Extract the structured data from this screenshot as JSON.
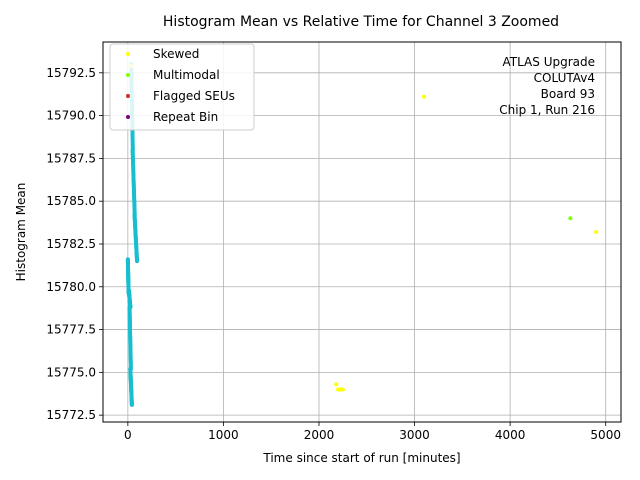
{
  "chart_data": {
    "type": "scatter",
    "title": "Histogram Mean vs Relative Time for Channel 3 Zoomed",
    "xlabel": "Time since start of run [minutes]",
    "ylabel": "Histogram Mean",
    "xlim": [
      -260,
      5160
    ],
    "ylim": [
      15772.1,
      15794.3
    ],
    "xticks": [
      0,
      1000,
      2000,
      3000,
      4000,
      5000
    ],
    "yticks": [
      15772.5,
      15775.0,
      15777.5,
      15780.0,
      15782.5,
      15785.0,
      15787.5,
      15790.0,
      15792.5
    ],
    "xtick_labels": [
      "0",
      "1000",
      "2000",
      "3000",
      "4000",
      "5000"
    ],
    "ytick_labels": [
      "15772.5",
      "15775.0",
      "15777.5",
      "15780.0",
      "15782.5",
      "15785.0",
      "15787.5",
      "15790.0",
      "15792.5"
    ],
    "grid": true,
    "legend_position": "upper-left",
    "annotation_lines": [
      "ATLAS Upgrade",
      "COLUTAv4",
      "Board 93",
      "Chip 1, Run 216"
    ],
    "legend": [
      {
        "name": "Skewed",
        "color": "#ffff00"
      },
      {
        "name": "Multimodal",
        "color": "#7fff00"
      },
      {
        "name": "Flagged SEUs",
        "color": "#d62728"
      },
      {
        "name": "Repeat Bin",
        "color": "#800080"
      }
    ],
    "main_color": "#17becf",
    "main_series": {
      "segments": [
        {
          "x": [
            0,
            8
          ],
          "y": [
            15779.6,
            15781.6
          ]
        },
        {
          "x": [
            10,
            26
          ],
          "y": [
            15778.8,
            15779.8
          ]
        },
        {
          "x": [
            18,
            32
          ],
          "y": [
            15775.2,
            15778.8
          ]
        },
        {
          "x": [
            26,
            42
          ],
          "y": [
            15773.1,
            15775.2
          ]
        },
        {
          "x": [
            36,
            52
          ],
          "y": [
            15788.0,
            15793.0
          ]
        },
        {
          "x": [
            50,
            72
          ],
          "y": [
            15784.2,
            15788.0
          ]
        },
        {
          "x": [
            70,
            96
          ],
          "y": [
            15781.5,
            15784.2
          ]
        }
      ]
    },
    "skewed_points": {
      "x": [
        35,
        2180,
        2200,
        2230,
        2250,
        3100,
        4900
      ],
      "y": [
        15792.9,
        15774.3,
        15774.0,
        15774.0,
        15774.0,
        15791.1,
        15783.2
      ]
    },
    "multimodal_points": {
      "x": [
        4630
      ],
      "y": [
        15784.0
      ]
    }
  }
}
